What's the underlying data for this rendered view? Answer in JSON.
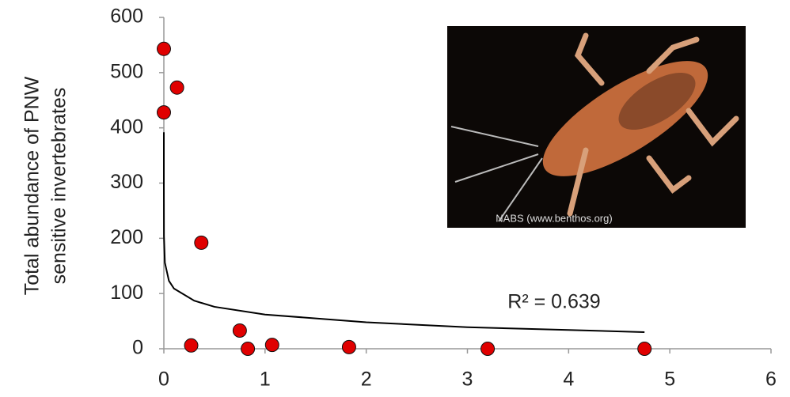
{
  "chart_data": {
    "type": "scatter",
    "y_label_lines": [
      "Total abundance of PNW",
      "sensitive invertebrates"
    ],
    "annotation": "R² = 0.639",
    "photo_credit": "NABS (www.benthos.org)",
    "x": [
      0.0,
      0.13,
      0.0,
      0.37,
      0.27,
      0.75,
      0.83,
      1.07,
      1.83,
      3.2,
      4.75
    ],
    "values": [
      543,
      473,
      428,
      192,
      6,
      33,
      0,
      7,
      3,
      0,
      0
    ],
    "color": "#e00000",
    "trendline": {
      "x": [
        1e-07,
        1e-05,
        0.001,
        0.01,
        0.05,
        0.1,
        0.3,
        0.5,
        1,
        2,
        3,
        4,
        4.75
      ],
      "values": [
        392,
        298,
        204,
        156,
        123,
        109,
        87,
        76,
        62,
        48,
        39,
        34,
        30
      ]
    },
    "xlim": [
      0,
      6
    ],
    "xticks": [
      0,
      1,
      2,
      3,
      4,
      5,
      6
    ],
    "ylim": [
      0,
      600
    ],
    "yticks": [
      0,
      100,
      200,
      300,
      400,
      500,
      600
    ]
  }
}
